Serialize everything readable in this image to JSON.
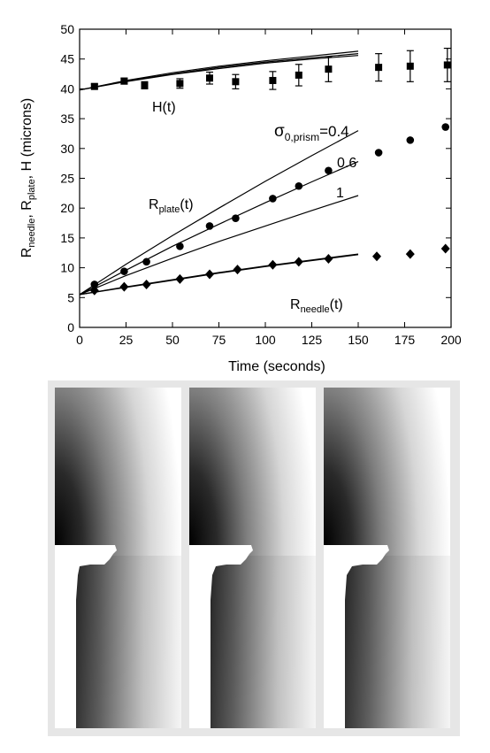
{
  "chart_data": {
    "type": "scatter",
    "xlabel": "Time (seconds)",
    "ylabel": {
      "base": "R",
      "sub1": "needle",
      "sep1": ", R",
      "sub2": "plate",
      "tail": ", H (microns)"
    },
    "xlim": [
      0,
      200
    ],
    "ylim": [
      0,
      50
    ],
    "xticks": [
      "0",
      "25",
      "50",
      "75",
      "100",
      "125",
      "150",
      "175",
      "200"
    ],
    "yticks": [
      "0",
      "5",
      "10",
      "15",
      "20",
      "25",
      "30",
      "35",
      "40",
      "45",
      "50"
    ],
    "grid": false,
    "series": [
      {
        "marker": "square",
        "points": [
          [
            8,
            40.4
          ],
          [
            24,
            41.3
          ],
          [
            35,
            40.6
          ],
          [
            54,
            40.9
          ],
          [
            70,
            41.8
          ],
          [
            84,
            41.2
          ],
          [
            104,
            41.4
          ],
          [
            118,
            42.3
          ],
          [
            134,
            43.3
          ],
          [
            161,
            43.6
          ],
          [
            178,
            43.8
          ],
          [
            198,
            44.0
          ]
        ],
        "errors": [
          0.4,
          0.5,
          0.6,
          0.8,
          1.0,
          1.2,
          1.5,
          1.8,
          2.1,
          2.3,
          2.6,
          2.8
        ]
      },
      {
        "marker": "circle",
        "points": [
          [
            8,
            7.2
          ],
          [
            24,
            9.4
          ],
          [
            36,
            11.0
          ],
          [
            54,
            13.6
          ],
          [
            70,
            17.0
          ],
          [
            84,
            18.3
          ],
          [
            104,
            21.6
          ],
          [
            118,
            23.7
          ],
          [
            134,
            26.3
          ],
          [
            161,
            29.3
          ],
          [
            178,
            31.4
          ],
          [
            197,
            33.6
          ]
        ]
      },
      {
        "marker": "diamond",
        "points": [
          [
            8,
            6.2
          ],
          [
            24,
            6.8
          ],
          [
            36,
            7.2
          ],
          [
            54,
            8.1
          ],
          [
            70,
            8.9
          ],
          [
            85,
            9.7
          ],
          [
            104,
            10.5
          ],
          [
            118,
            11.0
          ],
          [
            134,
            11.5
          ],
          [
            160,
            11.9
          ],
          [
            178,
            12.3
          ],
          [
            197,
            13.2
          ]
        ]
      }
    ],
    "curves": [
      {
        "group": "H",
        "x": [
          0,
          25,
          50,
          75,
          100,
          125,
          150
        ],
        "y": [
          39.8,
          41.4,
          42.7,
          43.8,
          44.7,
          45.5,
          46.3
        ]
      },
      {
        "group": "H",
        "x": [
          0,
          25,
          50,
          75,
          100,
          125,
          150
        ],
        "y": [
          39.8,
          41.3,
          42.5,
          43.6,
          44.5,
          45.2,
          45.9
        ]
      },
      {
        "group": "H",
        "x": [
          0,
          25,
          50,
          75,
          100,
          125,
          150
        ],
        "y": [
          39.8,
          41.2,
          42.4,
          43.4,
          44.3,
          45.0,
          45.6
        ]
      },
      {
        "group": "plate",
        "sigma": "0.4",
        "x": [
          0,
          25,
          50,
          75,
          100,
          125,
          150
        ],
        "y": [
          5.5,
          10.6,
          15.4,
          20.0,
          24.5,
          28.8,
          33.0
        ]
      },
      {
        "group": "plate",
        "sigma": "0.6",
        "x": [
          0,
          25,
          50,
          75,
          100,
          125,
          150
        ],
        "y": [
          5.5,
          9.6,
          13.6,
          17.3,
          20.9,
          24.4,
          27.8
        ]
      },
      {
        "group": "plate",
        "sigma": "1",
        "x": [
          0,
          25,
          50,
          75,
          100,
          125,
          150
        ],
        "y": [
          5.5,
          8.7,
          11.6,
          14.4,
          17.0,
          19.6,
          22.1
        ]
      },
      {
        "group": "needle",
        "x": [
          0,
          25,
          50,
          75,
          100,
          125,
          150
        ],
        "y": [
          5.5,
          6.8,
          8.0,
          9.2,
          10.3,
          11.3,
          12.3
        ]
      },
      {
        "group": "needle",
        "x": [
          0,
          25,
          50,
          75,
          100,
          125,
          150
        ],
        "y": [
          5.5,
          6.7,
          7.9,
          9.1,
          10.2,
          11.2,
          12.2
        ]
      }
    ],
    "annotations": {
      "h_label": "H(t)",
      "plate_label": {
        "base": "R",
        "sub": "plate",
        "tail": "(t)"
      },
      "needle_label": {
        "base": "R",
        "sub": "needle",
        "tail": "(t)"
      },
      "sigma_label": {
        "base": "σ",
        "sub": "0,prism",
        "tail": "=0.4"
      },
      "label_06": "0.6",
      "label_1": "1"
    }
  },
  "simulation_panels": 3
}
